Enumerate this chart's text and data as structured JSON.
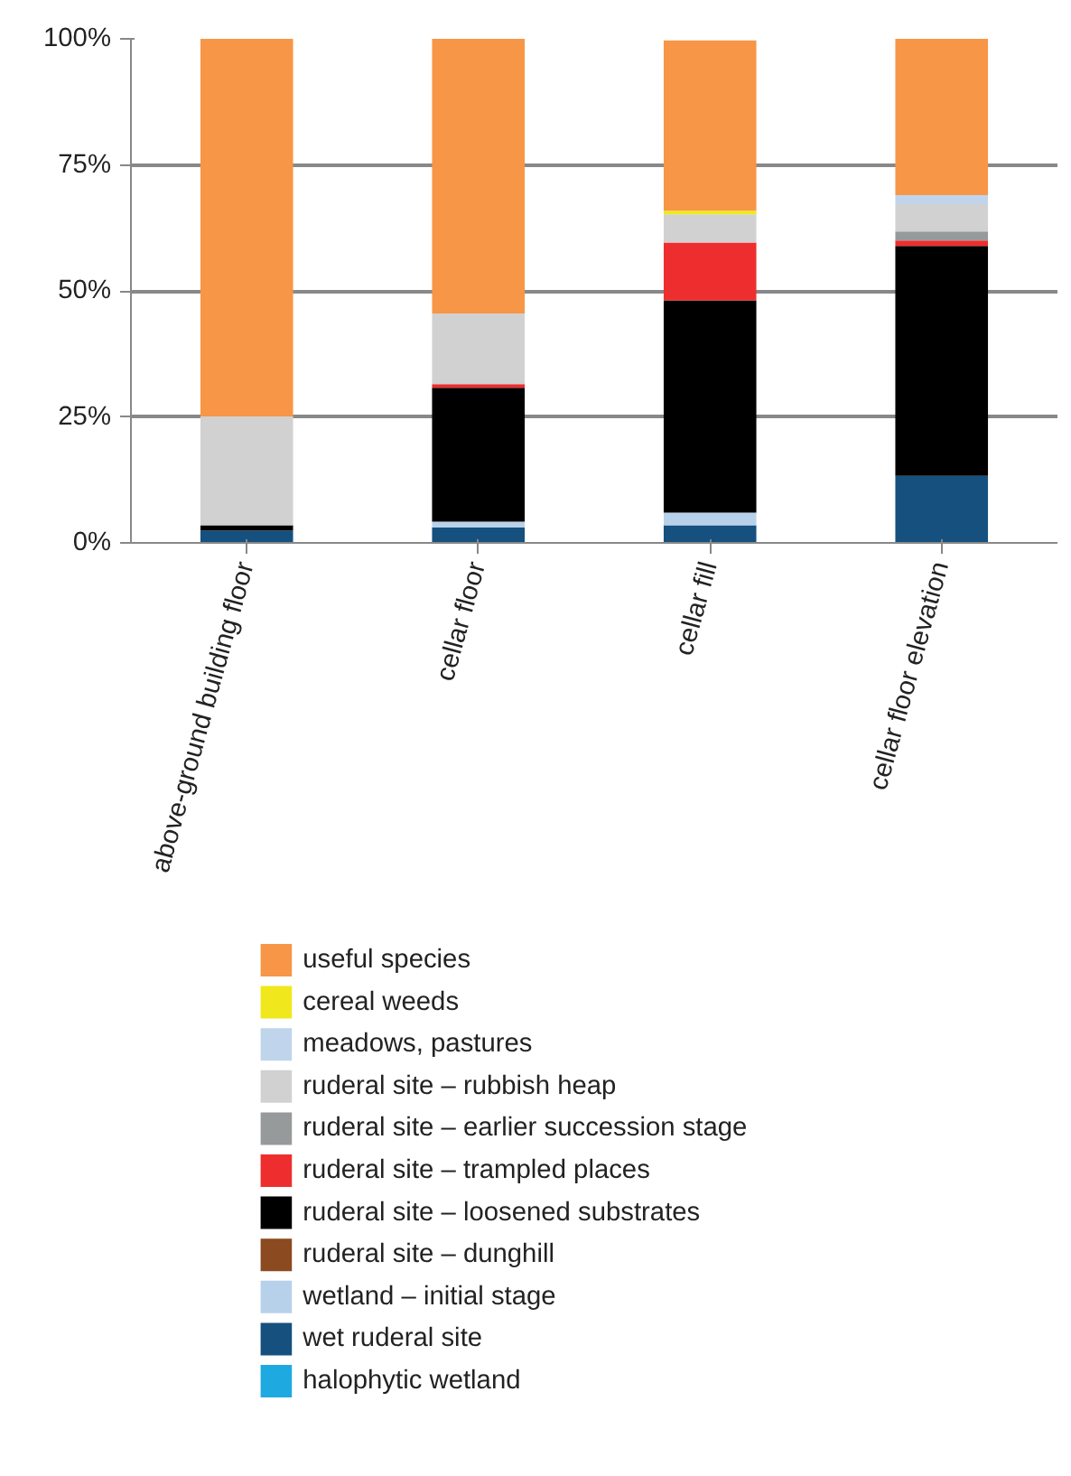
{
  "chart_data": {
    "type": "bar",
    "stacked": true,
    "categories": [
      "above-ground building floor",
      "cellar floor",
      "cellar fill",
      "cellar floor elevation"
    ],
    "series": [
      {
        "name": "halophytic wetland",
        "color": "#1ea9e1",
        "values": [
          0,
          0,
          0,
          0
        ]
      },
      {
        "name": "wet ruderal site",
        "color": "#15507f",
        "values": [
          2.4,
          3.1,
          3.5,
          13.3
        ]
      },
      {
        "name": "wetland – initial stage",
        "color": "#b8d1ea",
        "values": [
          0,
          1.1,
          2.5,
          0
        ]
      },
      {
        "name": "ruderal site – dunghill",
        "color": "#8b4a20",
        "values": [
          0,
          0,
          0,
          0
        ]
      },
      {
        "name": "ruderal site – loosened substrates",
        "color": "#000000",
        "values": [
          1.1,
          26.6,
          42.1,
          45.6
        ]
      },
      {
        "name": "ruderal site – trampled places",
        "color": "#ee2e2e",
        "values": [
          0,
          0.7,
          11.5,
          1.1
        ]
      },
      {
        "name": "ruderal site – earlier succession stage",
        "color": "#979a9b",
        "values": [
          0,
          0,
          0,
          1.8
        ]
      },
      {
        "name": "ruderal site – rubbish heap",
        "color": "#d0d1d0",
        "values": [
          21.6,
          14.0,
          5.6,
          5.4
        ]
      },
      {
        "name": "meadows, pastures",
        "color": "#c0d5ec",
        "values": [
          0,
          0,
          null,
          1.8
        ]
      },
      {
        "name": "cereal weeds",
        "color": "#f0e81c",
        "values": [
          0,
          0,
          0.7,
          0
        ]
      },
      {
        "name": "useful species",
        "color": "#f79646",
        "values": [
          74.9,
          54.5,
          33.8,
          31.0
        ]
      }
    ],
    "ylim": [
      0,
      100
    ],
    "yticks": [
      {
        "value": 0,
        "label": "0%"
      },
      {
        "value": 25,
        "label": "25%"
      },
      {
        "value": 50,
        "label": "50%"
      },
      {
        "value": 75,
        "label": "75%"
      },
      {
        "value": 100,
        "label": "100%"
      }
    ],
    "grid": "y",
    "legend": "bottom"
  }
}
